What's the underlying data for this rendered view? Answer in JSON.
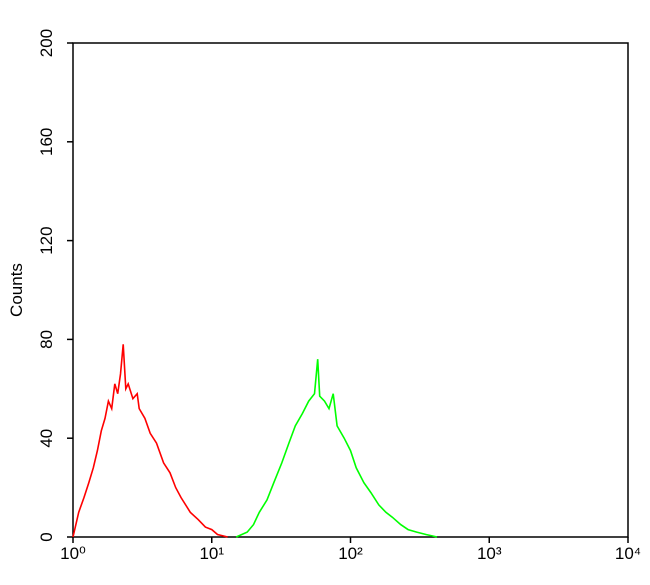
{
  "chart_data": {
    "type": "line",
    "y_label": "Counts",
    "xscale": "log",
    "xlim": [
      1,
      10000
    ],
    "ylim": [
      0,
      200
    ],
    "xticks": [
      {
        "value": 1,
        "label": "10⁰"
      },
      {
        "value": 10,
        "label": "10¹"
      },
      {
        "value": 100,
        "label": "10²"
      },
      {
        "value": 1000,
        "label": "10³"
      },
      {
        "value": 10000,
        "label": "10⁴"
      }
    ],
    "yticks": [
      0,
      40,
      80,
      120,
      160,
      200
    ],
    "series": [
      {
        "color": "#ff0000",
        "x": [
          1.0,
          1.1,
          1.2,
          1.3,
          1.4,
          1.5,
          1.6,
          1.7,
          1.8,
          1.9,
          2.0,
          2.1,
          2.2,
          2.3,
          2.4,
          2.5,
          2.7,
          2.9,
          3.0,
          3.3,
          3.6,
          4.0,
          4.5,
          5.0,
          5.5,
          6.0,
          7.0,
          8.0,
          9.0,
          10,
          11,
          13
        ],
        "values": [
          0,
          10,
          16,
          22,
          28,
          35,
          43,
          48,
          55,
          52,
          62,
          58,
          66,
          78,
          60,
          62,
          56,
          58,
          52,
          48,
          42,
          38,
          30,
          26,
          20,
          16,
          10,
          7,
          4,
          3,
          1,
          0
        ]
      },
      {
        "color": "#00ff00",
        "x": [
          15,
          18,
          20,
          22,
          25,
          28,
          32,
          36,
          40,
          45,
          50,
          55,
          58,
          60,
          65,
          70,
          75,
          80,
          90,
          100,
          110,
          125,
          140,
          160,
          180,
          200,
          230,
          260,
          300,
          350,
          420
        ],
        "values": [
          0,
          2,
          5,
          10,
          15,
          22,
          30,
          38,
          45,
          50,
          55,
          58,
          72,
          57,
          55,
          52,
          58,
          45,
          40,
          35,
          28,
          22,
          18,
          13,
          10,
          8,
          5,
          3,
          2,
          1,
          0
        ]
      }
    ]
  }
}
